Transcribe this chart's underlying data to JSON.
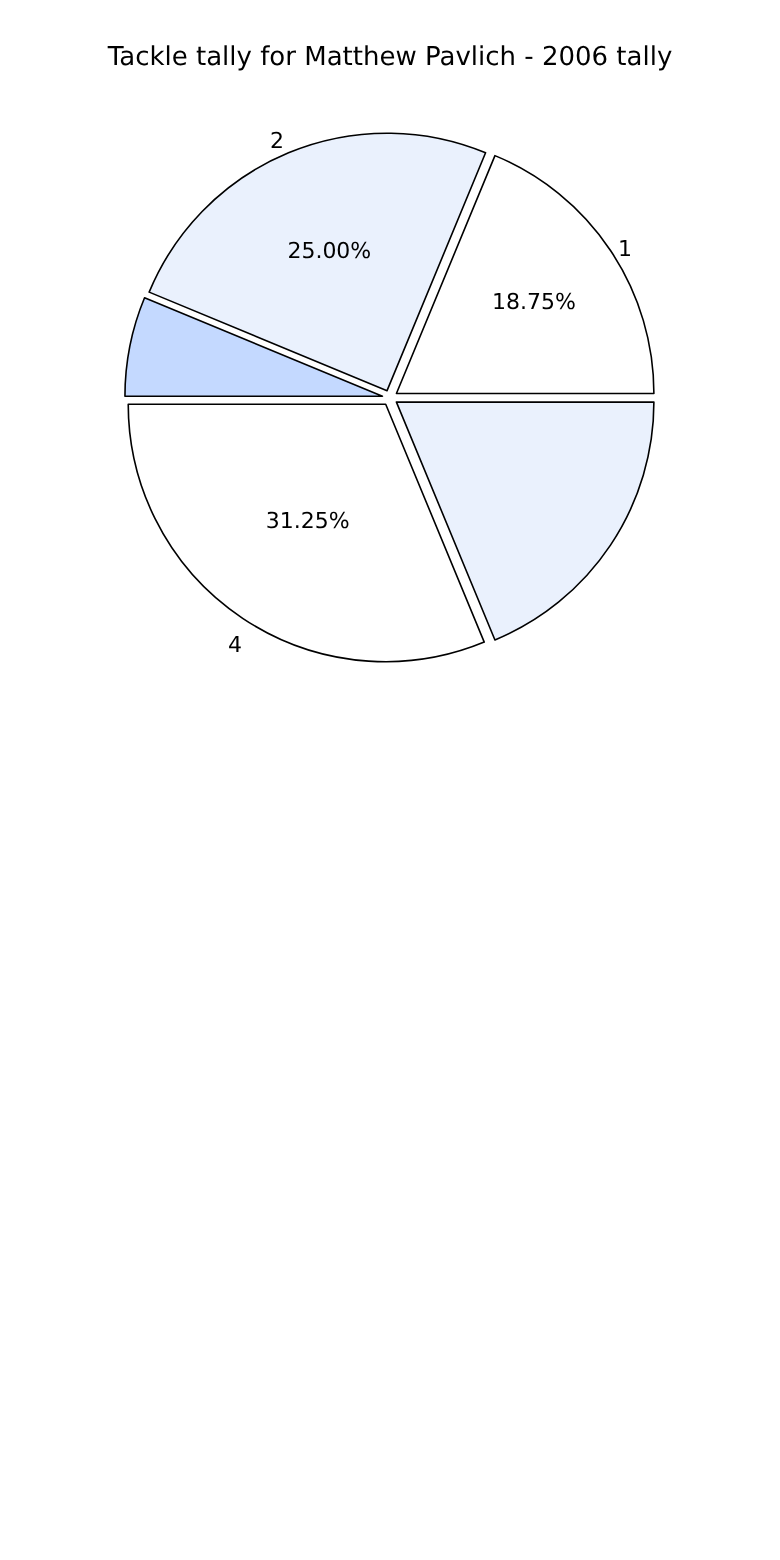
{
  "chart_data": {
    "type": "pie",
    "title": "Tackle tally for Matthew Pavlich - 2006 tally",
    "categories": [
      "1",
      "2",
      null,
      "4",
      null
    ],
    "values": [
      18.75,
      25,
      6.25,
      31.25,
      18.75
    ],
    "value_labels": [
      "18.75%",
      "25.00%",
      null,
      "31.25%",
      null
    ],
    "colors": [
      "#ffffff",
      "#eaf1fd",
      "#c4d9ff",
      "#ffffff",
      "#eaf1fd"
    ],
    "legend": false
  }
}
